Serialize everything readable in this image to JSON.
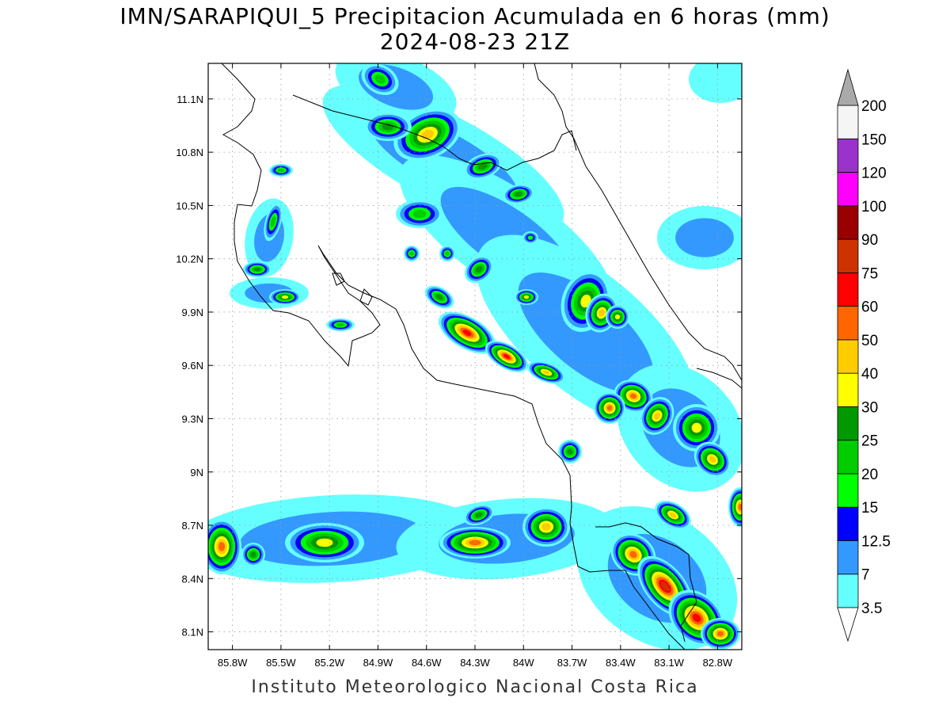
{
  "title_line1": "IMN/SARAPIQUI_5 Precipitacion Acumulada en 6 horas (mm)",
  "title_line2": "2024-08-23 21Z",
  "footer": "Instituto Meteorologico Nacional Costa Rica",
  "map": {
    "lon_range": [
      -85.95,
      -82.65
    ],
    "lat_range": [
      8.0,
      11.3
    ],
    "lon_ticks": [
      "85.8W",
      "85.5W",
      "85.2W",
      "84.9W",
      "84.6W",
      "84.3W",
      "84W",
      "83.7W",
      "83.4W",
      "83.1W",
      "82.8W"
    ],
    "lat_ticks": [
      "11.1N",
      "10.8N",
      "10.5N",
      "10.2N",
      "9.9N",
      "9.6N",
      "9.3N",
      "9N",
      "8.7N",
      "8.4N",
      "8.1N"
    ],
    "grid": "dotted"
  },
  "colorbar": {
    "levels": [
      "3.5",
      "7",
      "12.5",
      "15",
      "20",
      "25",
      "30",
      "40",
      "50",
      "60",
      "75",
      "90",
      "100",
      "120",
      "150",
      "200"
    ],
    "colors": [
      "#66ffff",
      "#3399ff",
      "#0000ff",
      "#00ff00",
      "#00cc00",
      "#009900",
      "#ffff00",
      "#ffcc00",
      "#ff6600",
      "#ff0000",
      "#cc3300",
      "#990000",
      "#ff00ff",
      "#9933cc",
      "#f5f5f5",
      "#aaaaaa"
    ]
  },
  "precip_colors": {
    "c35": "#66ffff",
    "c7": "#3399ff",
    "c125": "#0000ff",
    "c15": "#00ff00",
    "c20": "#00cc00",
    "c25": "#009900",
    "c30": "#ffff00",
    "c40": "#ffcc00",
    "c50": "#ff6600",
    "c60": "#ff0000",
    "c75": "#cc3300"
  }
}
